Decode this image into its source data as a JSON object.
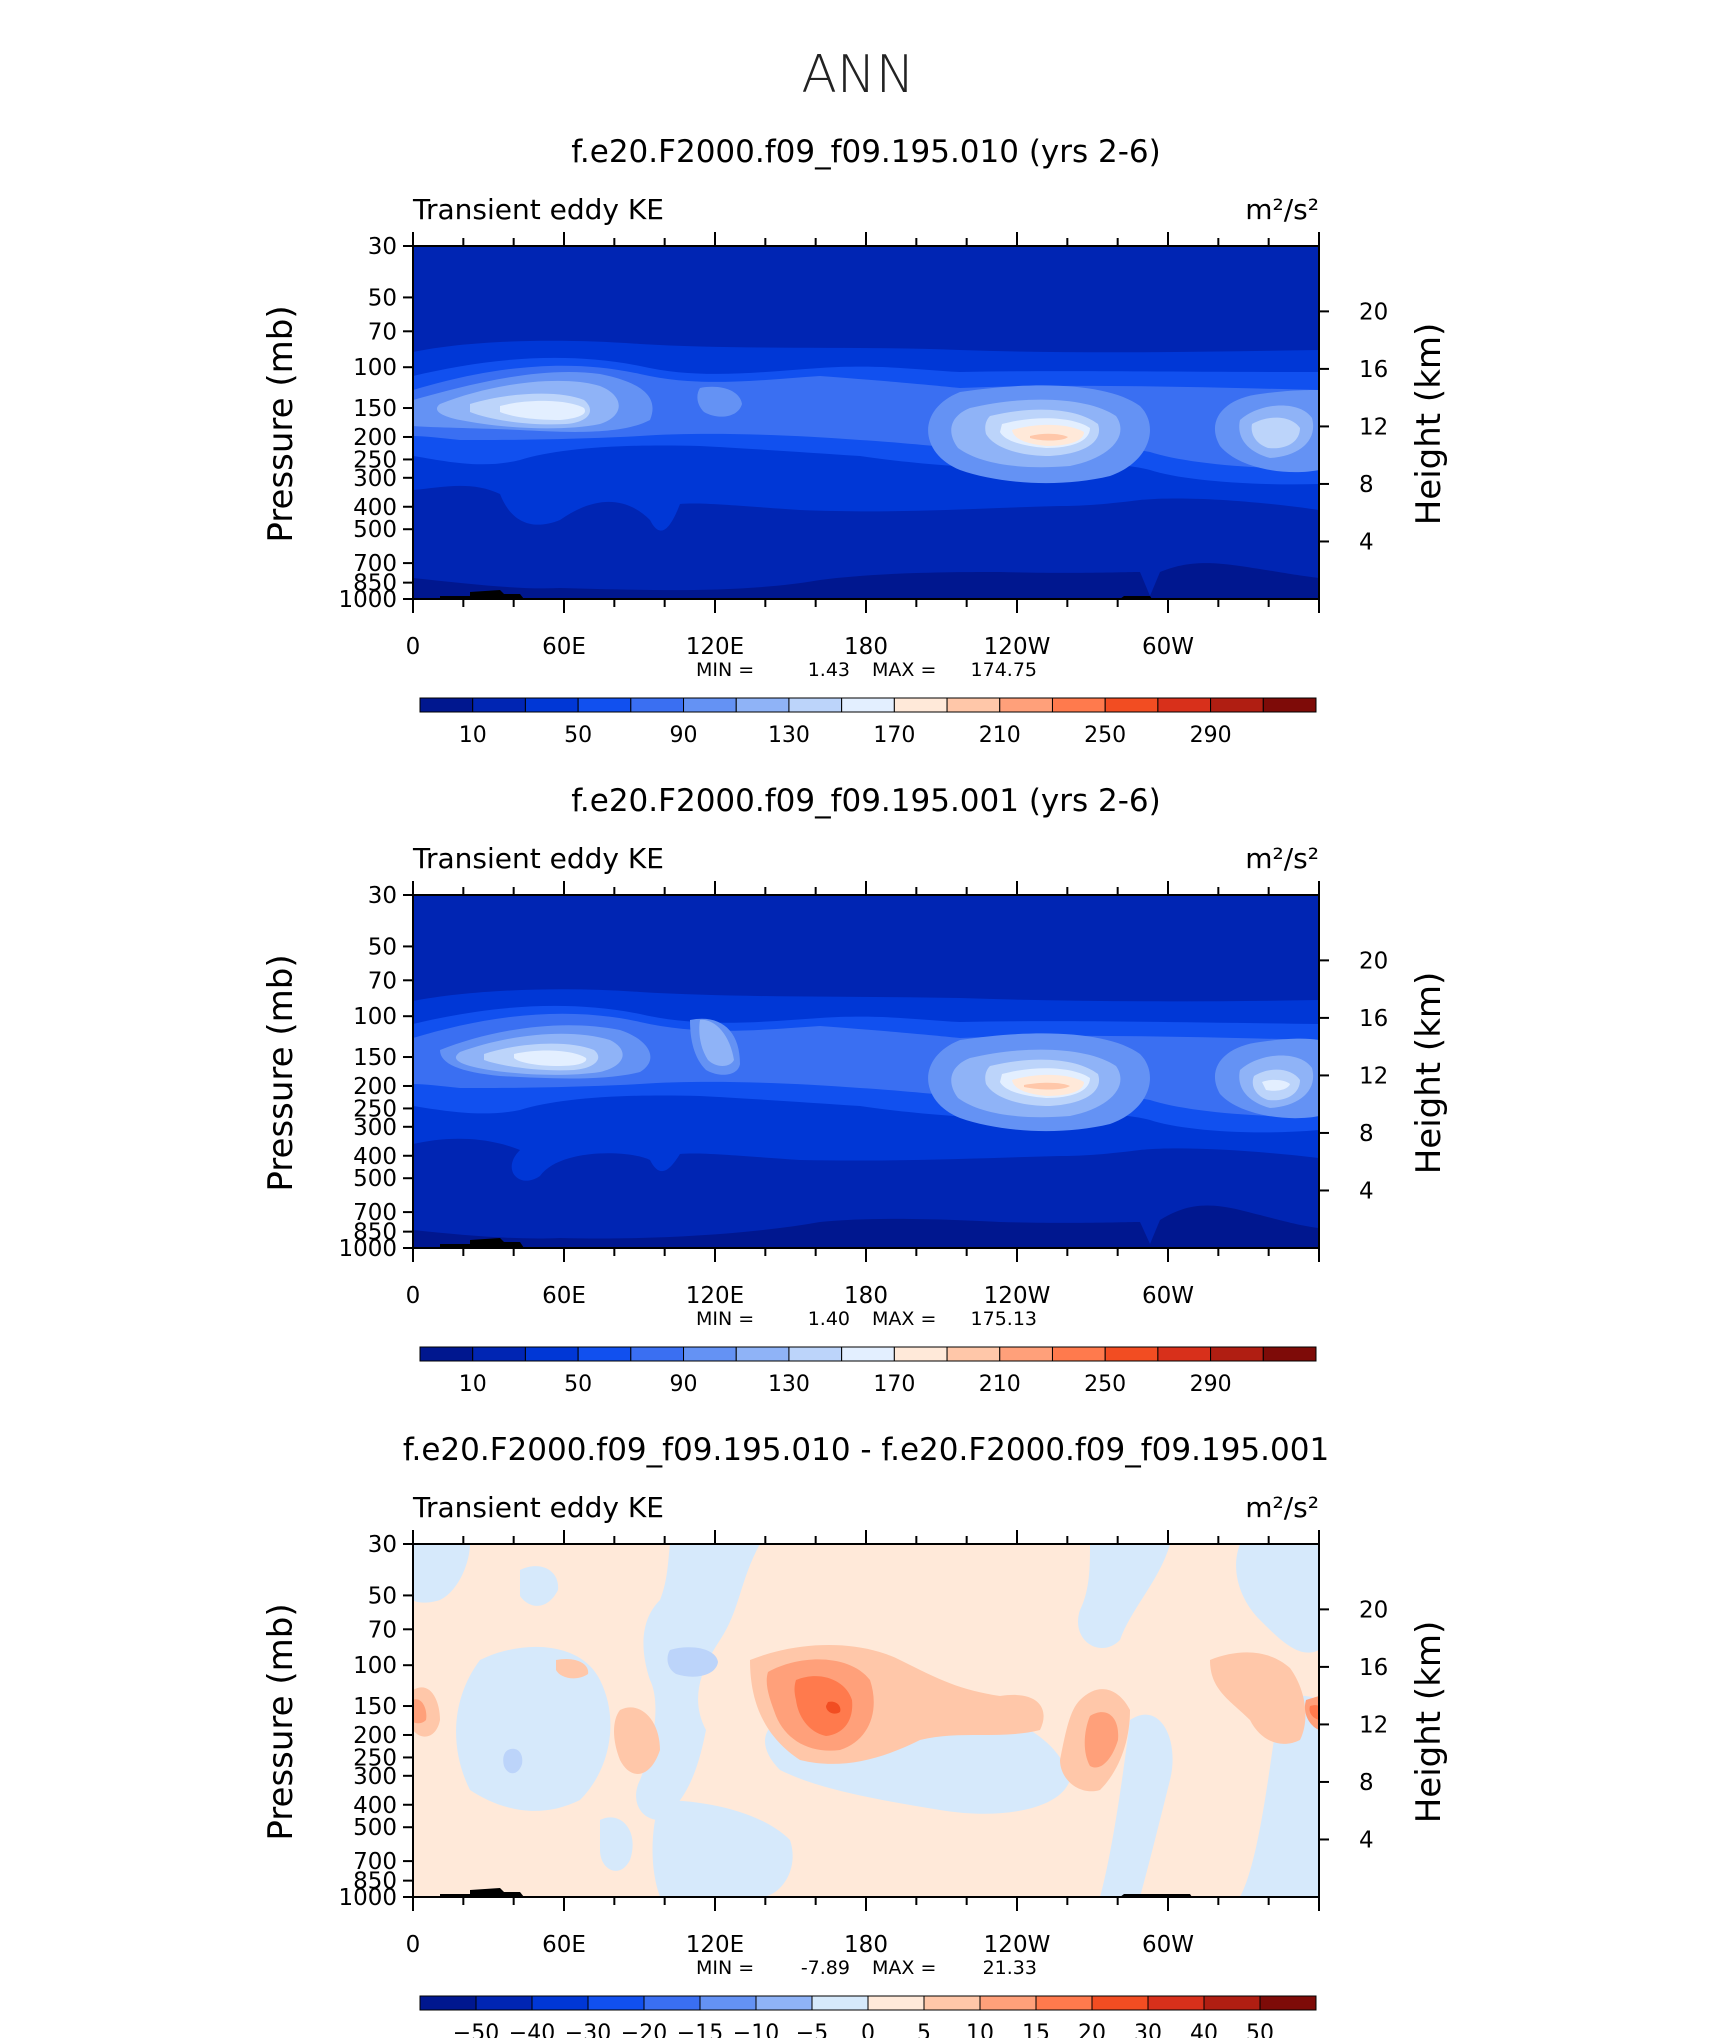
{
  "page_title": "ANN",
  "chart_data": [
    {
      "type": "heatmap",
      "title": "f.e20.F2000.f09_f09.195.010 (yrs 2-6)",
      "left_string": "Transient eddy KE",
      "right_string": "m²/s²",
      "ylabel": "Pressure (mb)",
      "ylabel_right": "Height (km)",
      "x_ticklabels": [
        "0",
        "60E",
        "120E",
        "180",
        "120W",
        "60W"
      ],
      "x_ticks_lon": [
        0,
        60,
        120,
        180,
        240,
        300
      ],
      "xlim": [
        0,
        360
      ],
      "ylim": [
        1000,
        30
      ],
      "y_scale": "log",
      "y_ticklabels": [
        "30",
        "50",
        "70",
        "100",
        "150",
        "200",
        "250",
        "300",
        "400",
        "500",
        "700",
        "850",
        "1000"
      ],
      "y_ticks": [
        30,
        50,
        70,
        100,
        150,
        200,
        250,
        300,
        400,
        500,
        700,
        850,
        1000
      ],
      "y2_ticklabels": [
        "4",
        "8",
        "12",
        "16",
        "20"
      ],
      "y2_ticks_km": [
        4,
        8,
        12,
        16,
        20
      ],
      "stats": {
        "min_label": "MIN =",
        "min": "1.43",
        "max_label": "MAX =",
        "max": "174.75"
      },
      "colorbar": {
        "levels": [
          10,
          30,
          50,
          70,
          90,
          110,
          130,
          150,
          170,
          190,
          210,
          230,
          250,
          270,
          290
        ],
        "labels": [
          "10",
          "50",
          "90",
          "130",
          "170",
          "210",
          "250",
          "290"
        ],
        "colors": [
          "#00178f",
          "#0025b3",
          "#0037d6",
          "#1150ef",
          "#3a6ff2",
          "#6492f4",
          "#8fb3f7",
          "#bcd4fa",
          "#e3efff",
          "#ffe9d9",
          "#ffc7a9",
          "#ffa07a",
          "#ff7a4d",
          "#f24d22",
          "#d8301b",
          "#b01e12",
          "#7e0b08"
        ]
      },
      "field": [
        {
          "lon": 0,
          "p": 150,
          "value": 95
        },
        {
          "lon": 60,
          "p": 150,
          "value": 155
        },
        {
          "lon": 100,
          "p": 150,
          "value": 75
        },
        {
          "lon": 120,
          "p": 150,
          "value": 115
        },
        {
          "lon": 180,
          "p": 150,
          "value": 65
        },
        {
          "lon": 240,
          "p": 200,
          "value": 174.75
        },
        {
          "lon": 300,
          "p": 200,
          "value": 90
        },
        {
          "lon": 338,
          "p": 200,
          "value": 150
        },
        {
          "lon": 200,
          "p": 700,
          "value": 12
        },
        {
          "lon": 0,
          "p": 30,
          "value": 8
        }
      ]
    },
    {
      "type": "heatmap",
      "title": "f.e20.F2000.f09_f09.195.001 (yrs 2-6)",
      "left_string": "Transient eddy KE",
      "right_string": "m²/s²",
      "ylabel": "Pressure (mb)",
      "ylabel_right": "Height (km)",
      "x_ticklabels": [
        "0",
        "60E",
        "120E",
        "180",
        "120W",
        "60W"
      ],
      "x_ticks_lon": [
        0,
        60,
        120,
        180,
        240,
        300
      ],
      "xlim": [
        0,
        360
      ],
      "ylim": [
        1000,
        30
      ],
      "y_scale": "log",
      "y_ticklabels": [
        "30",
        "50",
        "70",
        "100",
        "150",
        "200",
        "250",
        "300",
        "400",
        "500",
        "700",
        "850",
        "1000"
      ],
      "y_ticks": [
        30,
        50,
        70,
        100,
        150,
        200,
        250,
        300,
        400,
        500,
        700,
        850,
        1000
      ],
      "y2_ticklabels": [
        "4",
        "8",
        "12",
        "16",
        "20"
      ],
      "y2_ticks_km": [
        4,
        8,
        12,
        16,
        20
      ],
      "stats": {
        "min_label": "MIN =",
        "min": "1.40",
        "max_label": "MAX =",
        "max": "175.13"
      },
      "colorbar": {
        "levels": [
          10,
          30,
          50,
          70,
          90,
          110,
          130,
          150,
          170,
          190,
          210,
          230,
          250,
          270,
          290
        ],
        "labels": [
          "10",
          "50",
          "90",
          "130",
          "170",
          "210",
          "250",
          "290"
        ],
        "colors": [
          "#00178f",
          "#0025b3",
          "#0037d6",
          "#1150ef",
          "#3a6ff2",
          "#6492f4",
          "#8fb3f7",
          "#bcd4fa",
          "#e3efff",
          "#ffe9d9",
          "#ffc7a9",
          "#ffa07a",
          "#ff7a4d",
          "#f24d22",
          "#d8301b",
          "#b01e12",
          "#7e0b08"
        ]
      },
      "field": [
        {
          "lon": 0,
          "p": 150,
          "value": 95
        },
        {
          "lon": 60,
          "p": 150,
          "value": 150
        },
        {
          "lon": 120,
          "p": 150,
          "value": 110
        },
        {
          "lon": 180,
          "p": 150,
          "value": 65
        },
        {
          "lon": 240,
          "p": 200,
          "value": 175.13
        },
        {
          "lon": 338,
          "p": 200,
          "value": 150
        },
        {
          "lon": 200,
          "p": 700,
          "value": 12
        },
        {
          "lon": 0,
          "p": 30,
          "value": 8
        }
      ]
    },
    {
      "type": "heatmap",
      "title": "f.e20.F2000.f09_f09.195.010 - f.e20.F2000.f09_f09.195.001",
      "left_string": "Transient eddy KE",
      "right_string": "m²/s²",
      "ylabel": "Pressure (mb)",
      "ylabel_right": "Height (km)",
      "x_ticklabels": [
        "0",
        "60E",
        "120E",
        "180",
        "120W",
        "60W"
      ],
      "x_ticks_lon": [
        0,
        60,
        120,
        180,
        240,
        300
      ],
      "xlim": [
        0,
        360
      ],
      "ylim": [
        1000,
        30
      ],
      "y_scale": "log",
      "y_ticklabels": [
        "30",
        "50",
        "70",
        "100",
        "150",
        "200",
        "250",
        "300",
        "400",
        "500",
        "700",
        "850",
        "1000"
      ],
      "y_ticks": [
        30,
        50,
        70,
        100,
        150,
        200,
        250,
        300,
        400,
        500,
        700,
        850,
        1000
      ],
      "y2_ticklabels": [
        "4",
        "8",
        "12",
        "16",
        "20"
      ],
      "y2_ticks_km": [
        4,
        8,
        12,
        16,
        20
      ],
      "stats": {
        "min_label": "MIN =",
        "min": "-7.89",
        "max_label": "MAX =",
        "max": "21.33"
      },
      "colorbar": {
        "levels": [
          -50,
          -40,
          -30,
          -20,
          -15,
          -10,
          -5,
          0,
          5,
          10,
          15,
          20,
          30,
          40,
          50
        ],
        "labels": [
          "−50",
          "−40",
          "−30",
          "−20",
          "−15",
          "−10",
          "−5",
          "0",
          "5",
          "10",
          "15",
          "20",
          "30",
          "40",
          "50"
        ],
        "colors": [
          "#00178f",
          "#0025b3",
          "#0037d6",
          "#1150ef",
          "#3a6ff2",
          "#6492f4",
          "#8fb3f7",
          "#d6e9fb",
          "#ffe9d9",
          "#ffc7a9",
          "#ffa07a",
          "#ff7a4d",
          "#f24d22",
          "#d8301b",
          "#b01e12",
          "#7e0b08"
        ]
      },
      "field": [
        {
          "lon": 165,
          "p": 150,
          "value": 21.33
        },
        {
          "lon": 100,
          "p": 100,
          "value": -7.89
        },
        {
          "lon": 275,
          "p": 200,
          "value": 12
        },
        {
          "lon": 355,
          "p": 150,
          "value": 14
        },
        {
          "lon": 180,
          "p": 150,
          "value": 5
        },
        {
          "lon": 40,
          "p": 250,
          "value": -3
        }
      ]
    }
  ]
}
